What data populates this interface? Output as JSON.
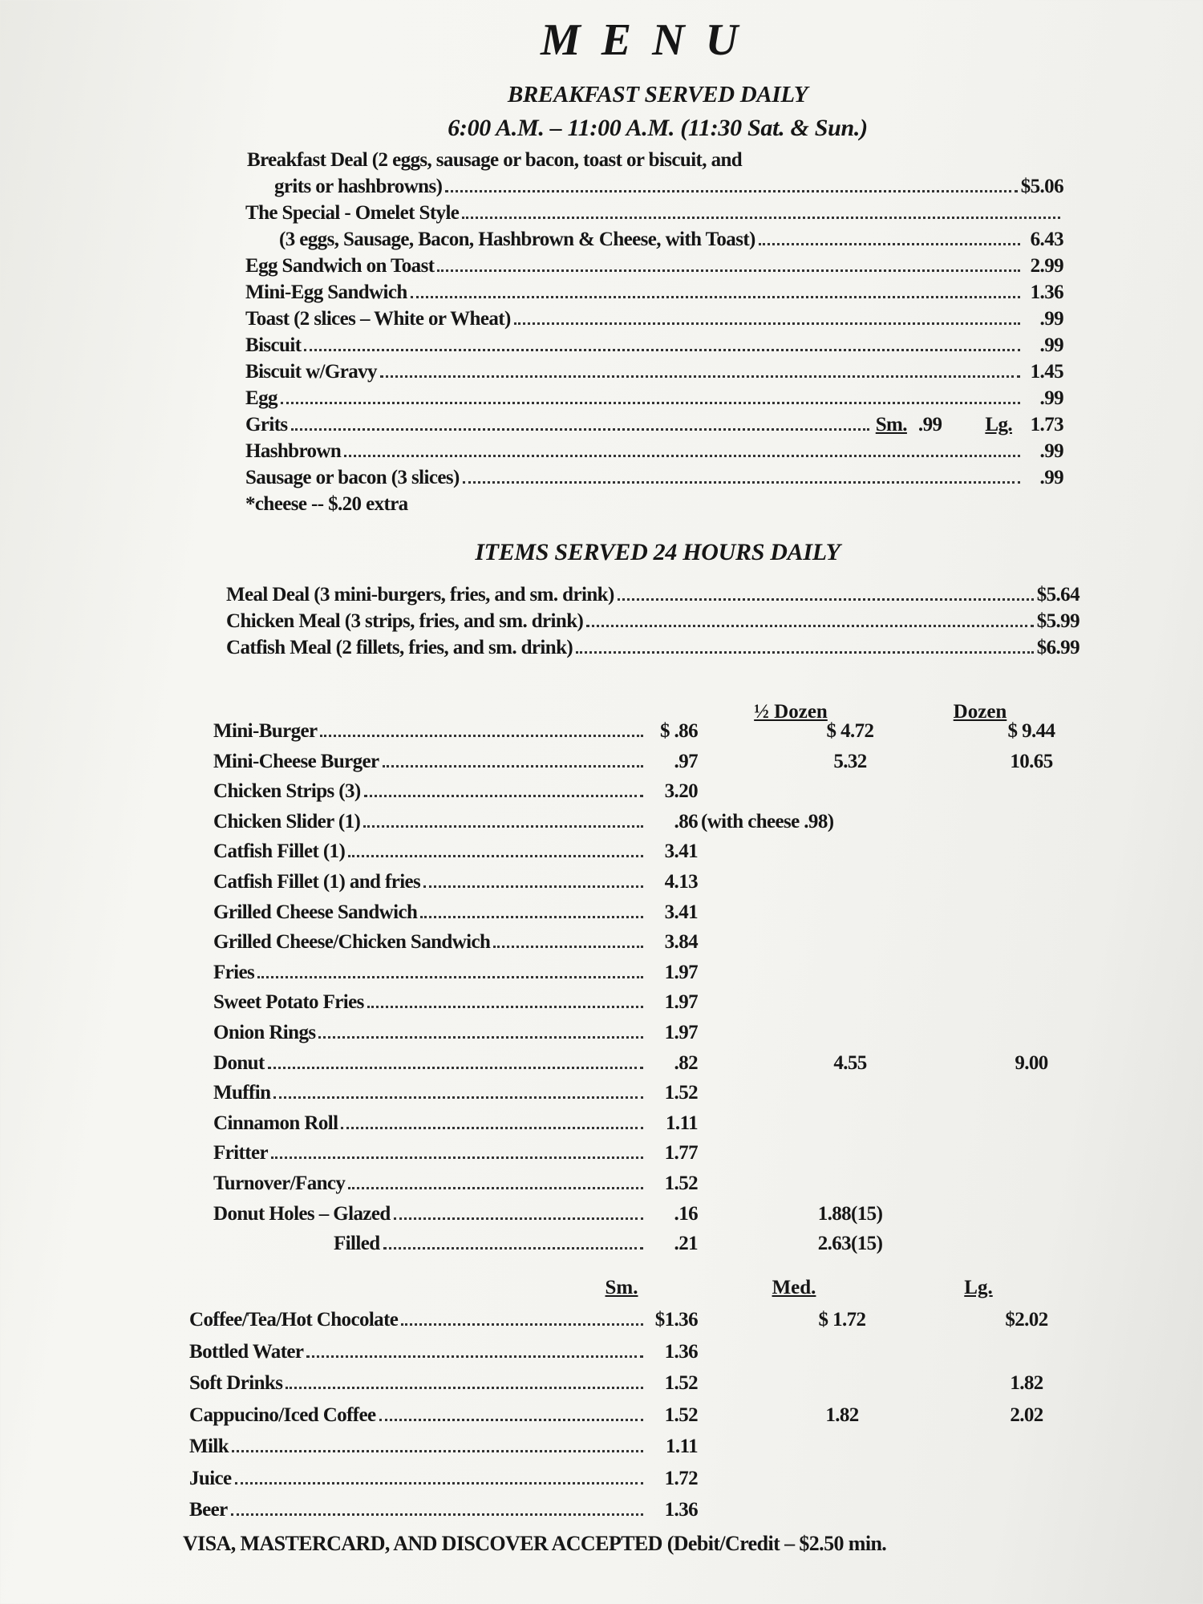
{
  "title": "MENU",
  "breakfast": {
    "heading": "BREAKFAST SERVED DAILY",
    "hours": "6:00 A.M. – 11:00 A.M. (11:30 Sat. & Sun.)",
    "items": [
      {
        "name": "Breakfast Deal (2 eggs, sausage or bacon, toast or biscuit, and",
        "cont": "grits or hashbrowns)",
        "price": "$5.06"
      },
      {
        "name": "The Special - Omelet Style",
        "cont": "(3 eggs, Sausage, Bacon, Hashbrown & Cheese, with Toast)",
        "price": "6.43"
      },
      {
        "name": "Egg Sandwich on Toast",
        "price": "2.99"
      },
      {
        "name": "Mini-Egg Sandwich",
        "price": "1.36"
      },
      {
        "name": "Toast (2 slices – White or Wheat)",
        "price": ".99"
      },
      {
        "name": "Biscuit",
        "price": ".99"
      },
      {
        "name": "Biscuit w/Gravy",
        "price": "1.45"
      },
      {
        "name": "Egg",
        "price": ".99"
      },
      {
        "name": "Grits",
        "sm_label": "Sm.",
        "sm_price": ".99",
        "lg_label": "Lg.",
        "price": "1.73"
      },
      {
        "name": "Hashbrown",
        "price": ".99"
      },
      {
        "name": "Sausage or bacon (3 slices)",
        "price": ".99"
      }
    ],
    "note": "*cheese -- $.20 extra"
  },
  "allday": {
    "heading": "ITEMS SERVED 24 HOURS DAILY",
    "meals": [
      {
        "name": "Meal Deal (3 mini-burgers, fries, and sm. drink)",
        "price": "$5.64"
      },
      {
        "name": "Chicken Meal (3 strips, fries, and sm. drink)",
        "price": "$5.99"
      },
      {
        "name": "Catfish Meal (2 fillets, fries, and sm. drink)",
        "price": "$6.99"
      }
    ],
    "col_half": "½ Dozen",
    "col_dozen": "Dozen",
    "items": [
      {
        "name": "Mini-Burger",
        "price": "$ .86",
        "half": "$ 4.72",
        "dozen": "$ 9.44"
      },
      {
        "name": "Mini-Cheese Burger",
        "price": ".97",
        "half": "5.32",
        "dozen": "10.65"
      },
      {
        "name": "Chicken Strips (3)",
        "price": "3.20"
      },
      {
        "name": "Chicken Slider (1)",
        "price": ".86",
        "note": "(with cheese .98)"
      },
      {
        "name": "Catfish Fillet (1)",
        "price": "3.41"
      },
      {
        "name": "Catfish Fillet (1) and fries",
        "price": "4.13"
      },
      {
        "name": "Grilled Cheese Sandwich",
        "price": "3.41"
      },
      {
        "name": "Grilled Cheese/Chicken Sandwich",
        "price": "3.84"
      },
      {
        "name": "Fries",
        "price": "1.97"
      },
      {
        "name": "Sweet Potato Fries",
        "price": "1.97"
      },
      {
        "name": "Onion Rings",
        "price": "1.97"
      },
      {
        "name": "Donut",
        "price": ".82",
        "half": "4.55",
        "dozen": "9.00"
      },
      {
        "name": "Muffin",
        "price": "1.52"
      },
      {
        "name": "Cinnamon Roll",
        "price": "1.11"
      },
      {
        "name": "Fritter",
        "price": "1.77"
      },
      {
        "name": "Turnover/Fancy",
        "price": "1.52"
      },
      {
        "name": "Donut Holes – Glazed",
        "price": ".16",
        "half": "1.88(15)"
      },
      {
        "name": "Filled",
        "indent": true,
        "price": ".21",
        "half": "2.63(15)"
      }
    ]
  },
  "drinks": {
    "col_sm": "Sm.",
    "col_med": "Med.",
    "col_lg": "Lg.",
    "items": [
      {
        "name": "Coffee/Tea/Hot Chocolate",
        "sm": "$1.36",
        "med": "$ 1.72",
        "lg": "$2.02"
      },
      {
        "name": "Bottled Water",
        "sm": "1.36"
      },
      {
        "name": "Soft Drinks",
        "sm": "1.52",
        "lg": "1.82"
      },
      {
        "name": "Cappucino/Iced Coffee",
        "sm": "1.52",
        "med": "1.82",
        "lg": "2.02"
      },
      {
        "name": "Milk",
        "sm": "1.11"
      },
      {
        "name": "Juice",
        "sm": "1.72"
      },
      {
        "name": "Beer",
        "sm": "1.36"
      }
    ]
  },
  "footer": "VISA, MASTERCARD, AND DISCOVER ACCEPTED (Debit/Credit – $2.50 min."
}
